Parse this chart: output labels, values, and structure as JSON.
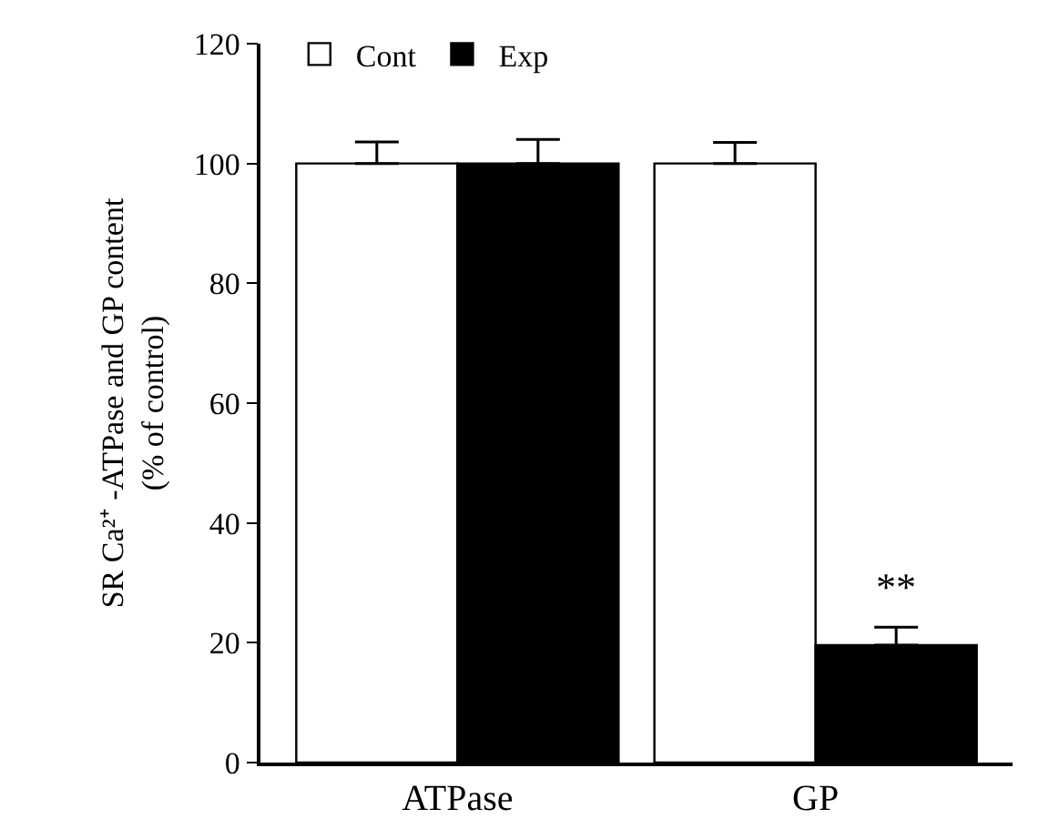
{
  "chart_data": {
    "type": "bar",
    "ylabel": "SR Ca²⁺ -ATPase and GP content\n(% of control)",
    "categories": [
      "ATPase",
      "GP"
    ],
    "series": [
      {
        "name": "Cont",
        "color": "#ffffff",
        "values": [
          100,
          100
        ],
        "errors": [
          [
            100,
            103.6
          ],
          [
            100,
            103.5
          ]
        ]
      },
      {
        "name": "Exp",
        "color": "#000000",
        "values": [
          100,
          19.6
        ],
        "errors": [
          [
            100,
            104
          ],
          [
            19.6,
            22.6
          ]
        ]
      }
    ],
    "annotations": [
      {
        "text": "**",
        "x": "GP",
        "y": 25
      }
    ],
    "ylim": [
      0,
      120
    ],
    "yticks": [
      0,
      20,
      40,
      60,
      80,
      100,
      120
    ],
    "grid": false,
    "legend": "top left"
  }
}
